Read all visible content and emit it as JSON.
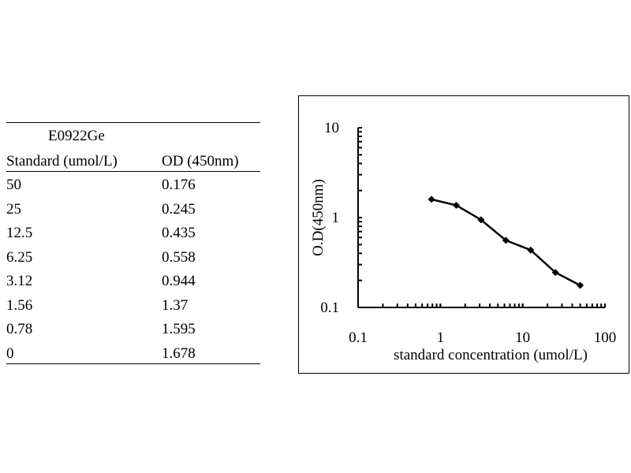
{
  "table": {
    "title": "E0922Ge",
    "headers": [
      "Standard (umol/L)",
      "OD (450nm)"
    ],
    "rows": [
      [
        "50",
        "0.176"
      ],
      [
        "25",
        "0.245"
      ],
      [
        "12.5",
        "0.435"
      ],
      [
        "6.25",
        "0.558"
      ],
      [
        "3.12",
        "0.944"
      ],
      [
        "1.56",
        "1.37"
      ],
      [
        "0.78",
        "1.595"
      ],
      [
        "0",
        "1.678"
      ]
    ]
  },
  "chart_data": {
    "type": "line",
    "xlabel": "standard concentration (umol/L)",
    "ylabel": "O.D(450nm)",
    "xscale": "log",
    "yscale": "log",
    "xlim": [
      0.1,
      100
    ],
    "ylim": [
      0.1,
      10
    ],
    "xticks": [
      "0.1",
      "1",
      "10",
      "100"
    ],
    "yticks": [
      "0.1",
      "1",
      "10"
    ],
    "grid": false,
    "marker": "diamond",
    "series": [
      {
        "x": [
          0.78,
          1.56,
          3.12,
          6.25,
          12.5,
          25,
          50
        ],
        "y": [
          1.595,
          1.37,
          0.944,
          0.558,
          0.435,
          0.245,
          0.176
        ]
      }
    ]
  }
}
